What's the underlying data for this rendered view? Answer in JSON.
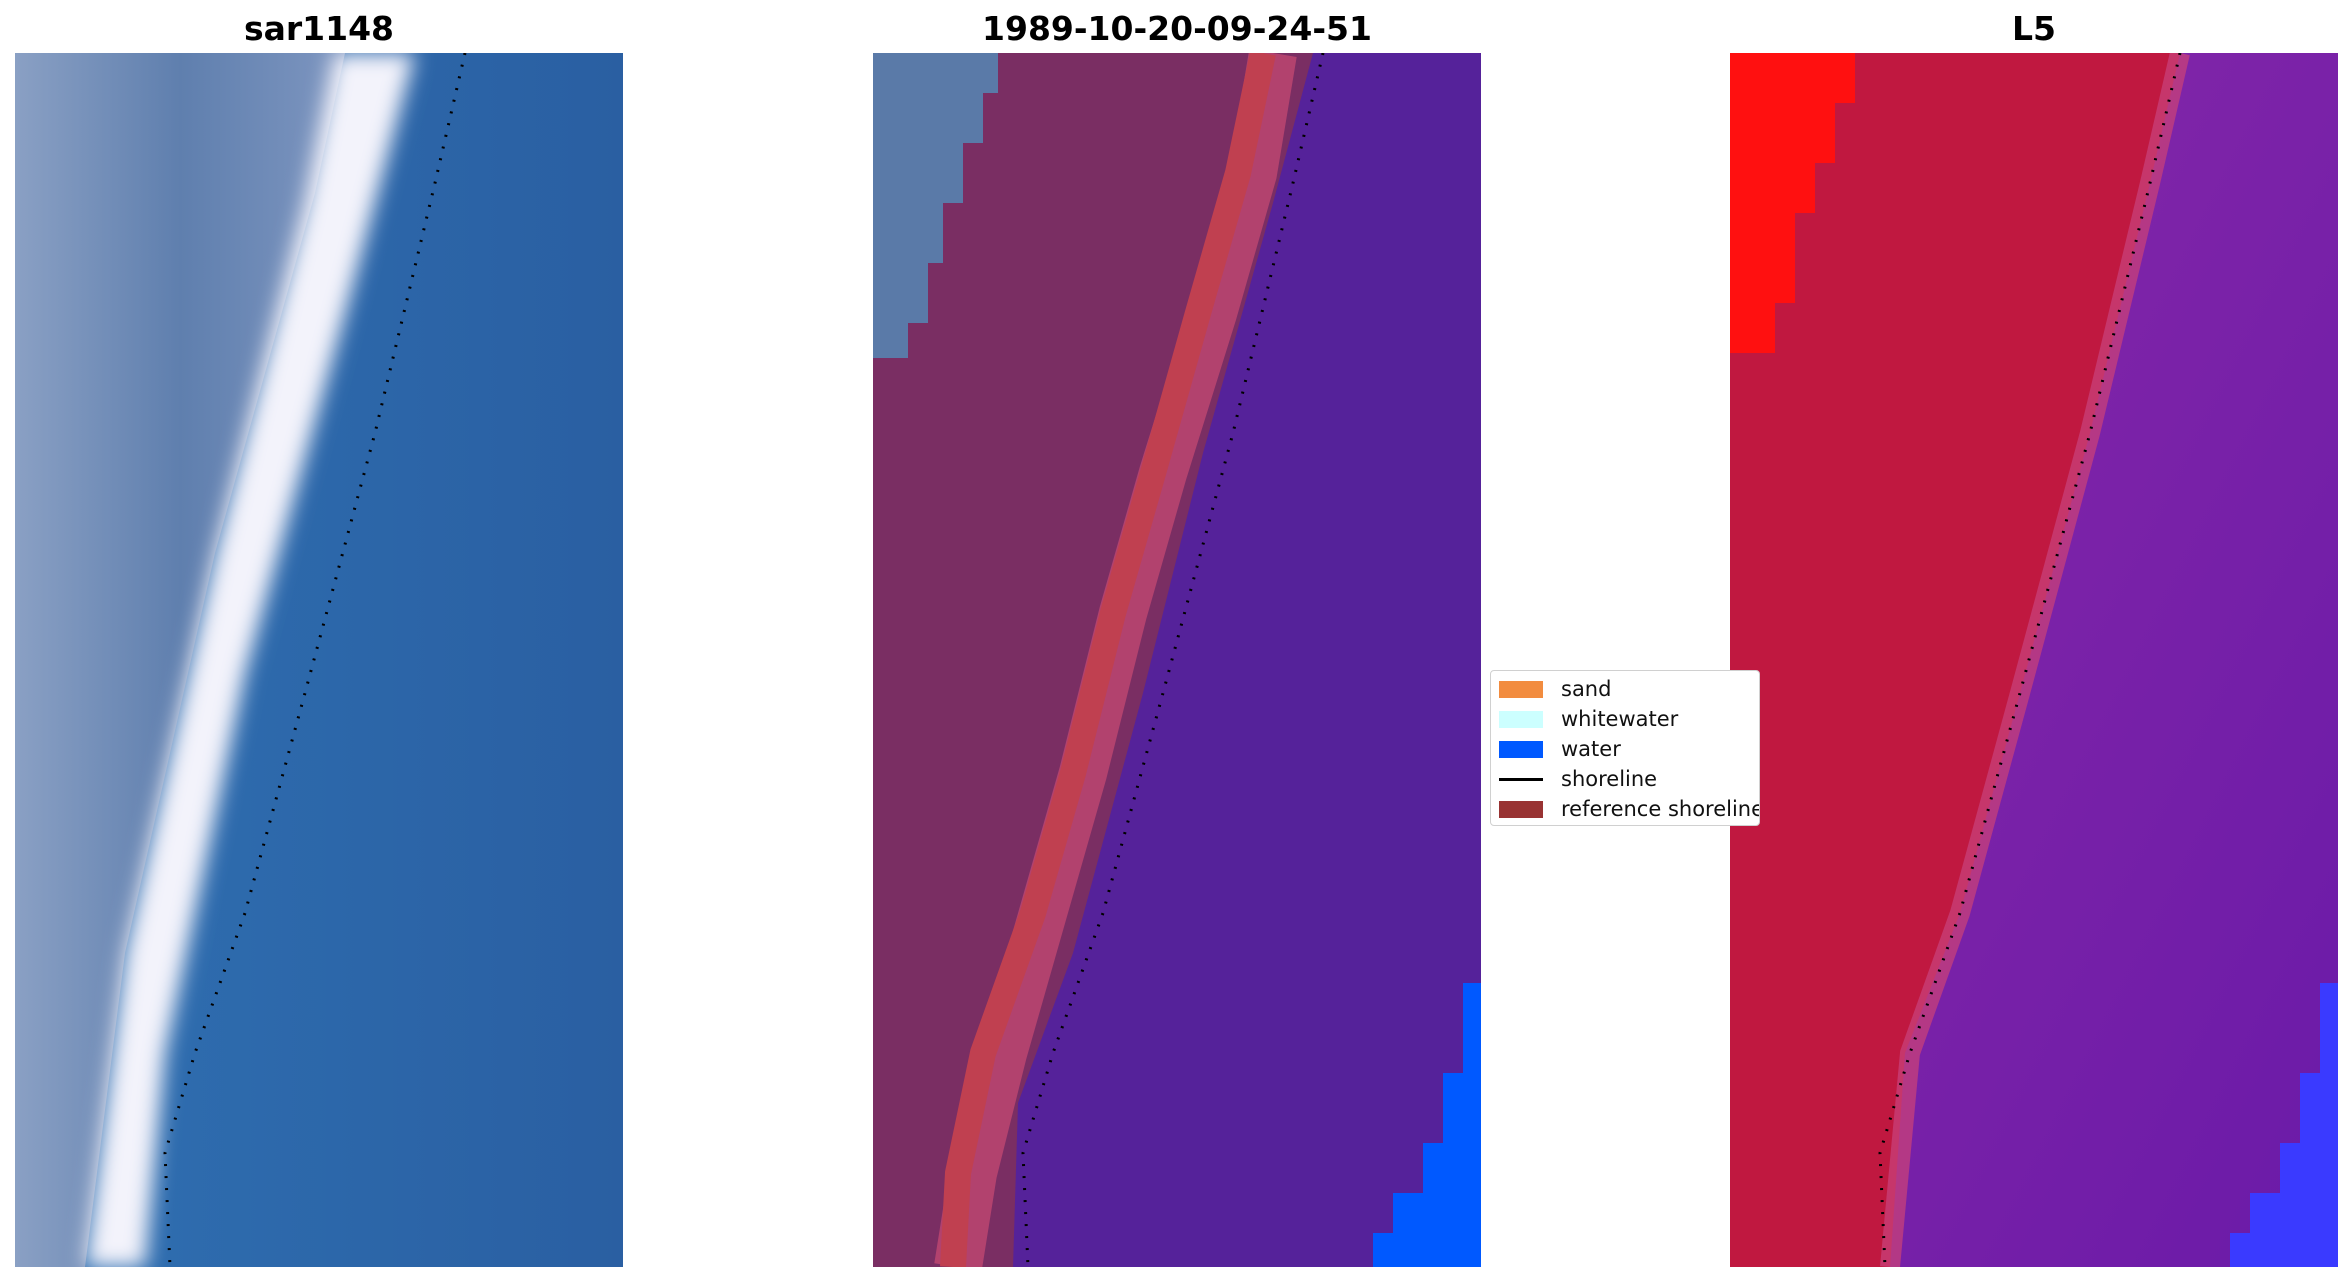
{
  "panels": [
    {
      "title": "sar1148",
      "content": "rgb-image"
    },
    {
      "title": "1989-10-20-09-24-51",
      "content": "classified-image"
    },
    {
      "title": "L5",
      "content": "probability-image"
    }
  ],
  "legend": {
    "entries": [
      {
        "label": "sand",
        "kind": "patch",
        "color": "#f28c3f"
      },
      {
        "label": "whitewater",
        "kind": "patch",
        "color": "#ccffff"
      },
      {
        "label": "water",
        "kind": "patch",
        "color": "#0059ff"
      },
      {
        "label": "shoreline",
        "kind": "line",
        "color": "#000000"
      },
      {
        "label": "reference shoreline",
        "kind": "patch",
        "color": "#993333"
      }
    ]
  },
  "colors": {
    "rgb_land": "#6a86b0",
    "rgb_sea": "#2a66a8",
    "rgb_foam": "#f2f2fa",
    "class_land": "#7a2e63",
    "class_sand_band": "#c04050",
    "class_sea": "#55229a",
    "class_water": "#0059ff",
    "prob_land": "#c01840",
    "prob_sea": "#7a1ea8",
    "prob_red": "#ff1010",
    "prob_blue": "#3a3aff"
  }
}
